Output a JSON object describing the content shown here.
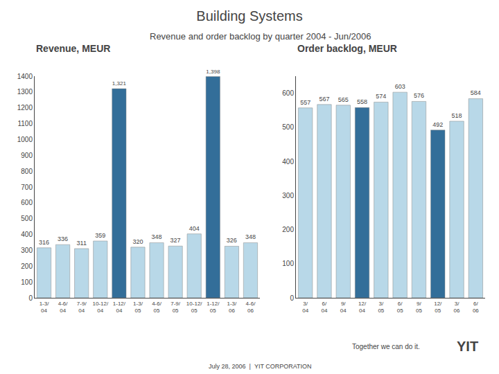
{
  "title": "Building Systems",
  "subtitle": "Revenue and order backlog by quarter 2004 - Jun/2006",
  "annotations": [
    "Together we can do it.",
    "YIT",
    "July 28, 2006  |  YIT CORPORATION"
  ],
  "chart_data": [
    {
      "type": "bar",
      "title": "Revenue, MEUR",
      "categories": [
        "1-3/\n04",
        "4-6/\n04",
        "7-9/\n04",
        "10-12/\n04",
        "1-12/\n04",
        "1-3/\n05",
        "4-6/\n05",
        "7-9/\n05",
        "10-12/\n05",
        "1-12/\n05",
        "1-3/\n06",
        "4-6/\n06"
      ],
      "values": [
        316,
        336,
        311,
        359,
        1321,
        320,
        348,
        327,
        404,
        1398,
        326,
        348
      ],
      "value_labels": [
        "316",
        "336",
        "311",
        "359",
        "1,321",
        "320",
        "348",
        "327",
        "404",
        "1,398",
        "326",
        "348"
      ],
      "colors": [
        "#b8d8e8",
        "#b8d8e8",
        "#b8d8e8",
        "#b8d8e8",
        "#336e99",
        "#b8d8e8",
        "#b8d8e8",
        "#b8d8e8",
        "#b8d8e8",
        "#336e99",
        "#b8d8e8",
        "#b8d8e8"
      ],
      "ylim": [
        0,
        1400
      ],
      "yticks": [
        0,
        100,
        200,
        300,
        400,
        500,
        600,
        700,
        800,
        900,
        1000,
        1100,
        1200,
        1300,
        1400
      ],
      "data_labels": true,
      "grid": false
    },
    {
      "type": "bar",
      "title": "Order backlog, MEUR",
      "categories": [
        "3/\n04",
        "6/\n04",
        "9/\n04",
        "12/\n04",
        "3/\n05",
        "6/\n05",
        "9/\n05",
        "12/\n05",
        "3/\n06",
        "6/\n06"
      ],
      "values": [
        557,
        567,
        565,
        558,
        574,
        603,
        576,
        492,
        518,
        584
      ],
      "colors": [
        "#b8d8e8",
        "#b8d8e8",
        "#b8d8e8",
        "#336e99",
        "#b8d8e8",
        "#b8d8e8",
        "#b8d8e8",
        "#336e99",
        "#b8d8e8",
        "#b8d8e8"
      ],
      "ylim": [
        0,
        650
      ],
      "yticks": [
        0,
        100,
        200,
        300,
        400,
        500,
        600
      ],
      "data_labels": true,
      "grid": false
    }
  ]
}
